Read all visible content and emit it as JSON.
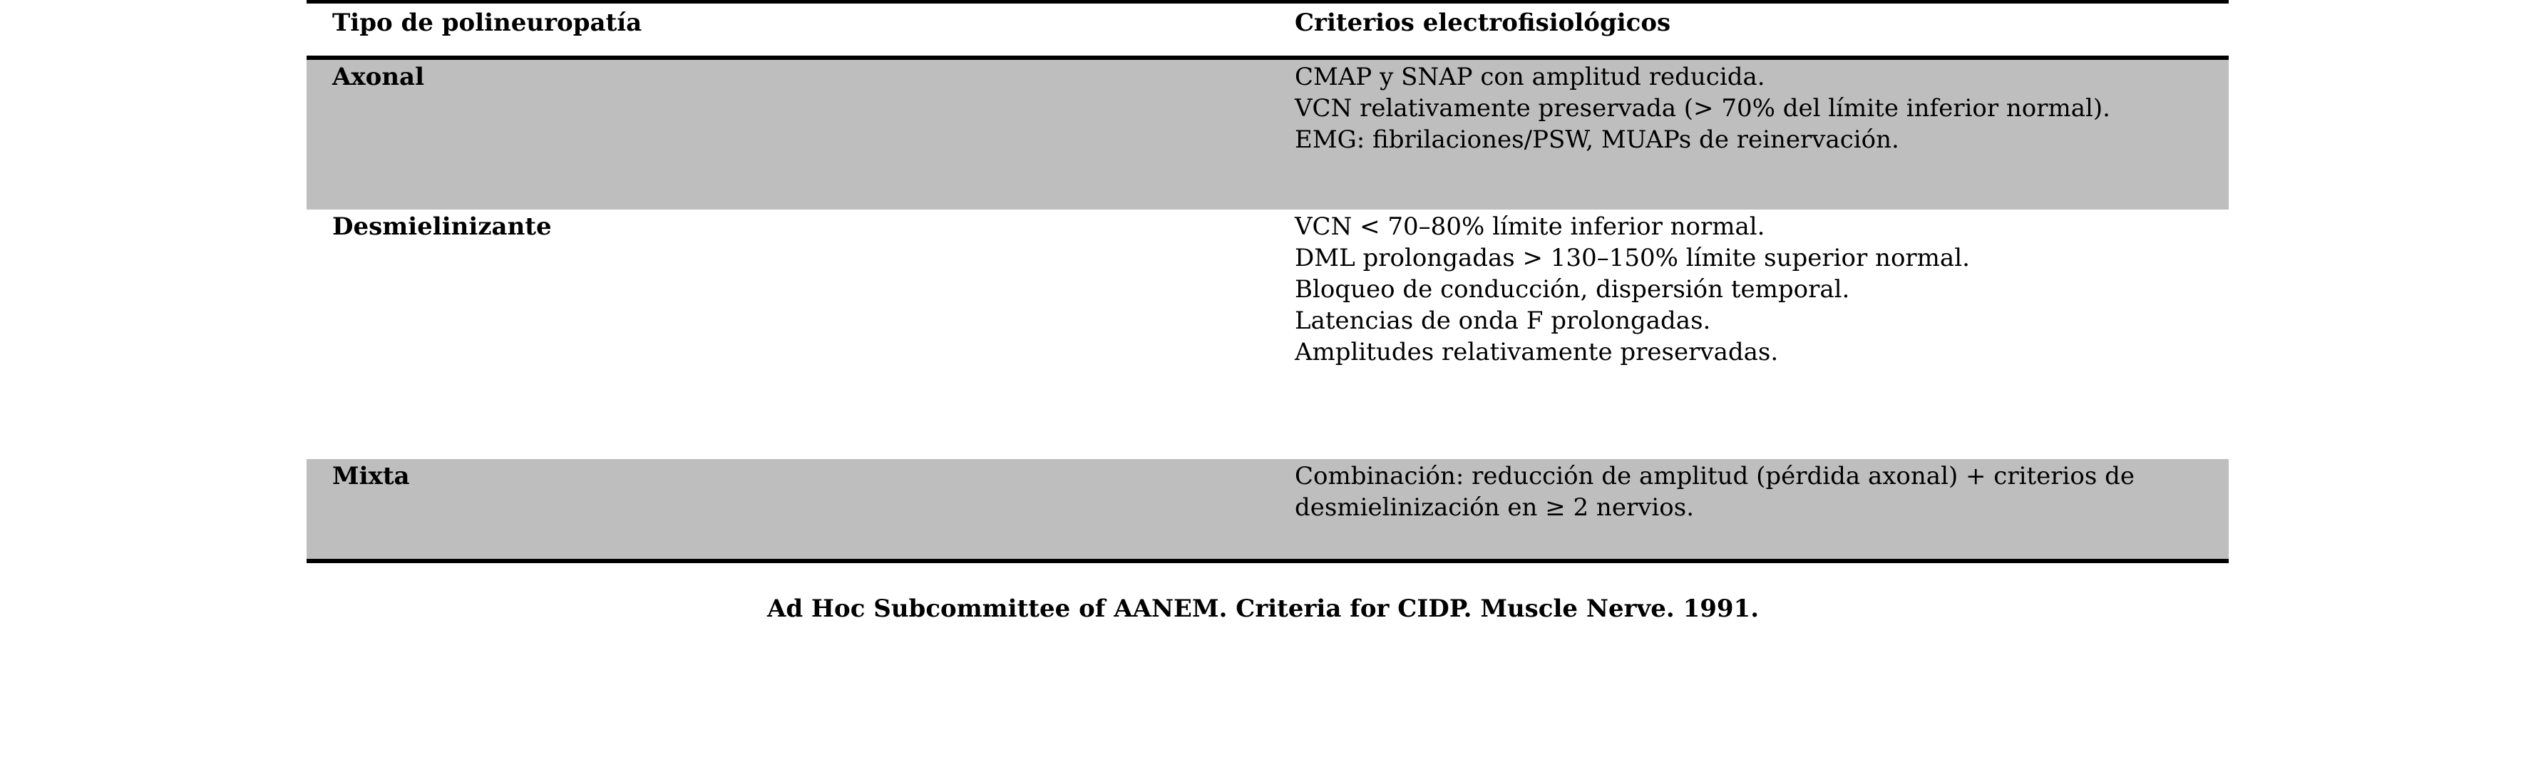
{
  "table": {
    "header": {
      "col1": "Tipo de polineuropatía",
      "col2": "Criterios electrofisiológicos"
    },
    "rows": [
      {
        "type": "Axonal",
        "criteria": [
          "CMAP y SNAP con amplitud reducida.",
          "VCN relativamente preservada (> 70% del límite inferior normal).",
          "EMG: fibrilaciones/PSW, MUAPs de reinervación."
        ]
      },
      {
        "type": "Desmielinizante",
        "criteria": [
          "VCN < 70–80% límite inferior normal.",
          "DML prolongadas > 130–150% límite superior normal.",
          "Bloqueo de conducción, dispersión temporal.",
          "Latencias de onda F prolongadas.",
          "Amplitudes relativamente preservadas."
        ]
      },
      {
        "type": "Mixta",
        "criteria": [
          "Combinación: reducción de amplitud (pérdida axonal) + criterios de",
          "desmielinización en ≥ 2 nervios."
        ]
      }
    ]
  },
  "caption": "Ad Hoc Subcommittee of AANEM. Criteria for CIDP. Muscle Nerve. 1991."
}
